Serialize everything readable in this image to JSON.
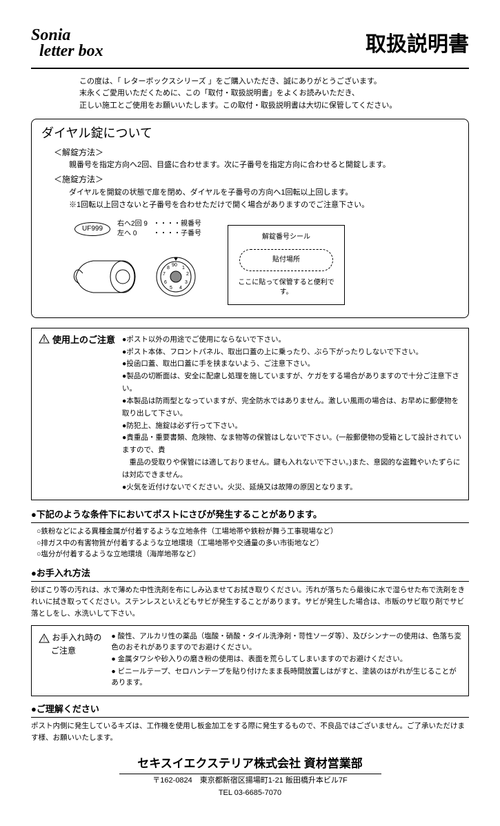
{
  "logo": {
    "line1": "Sonia",
    "line2": "letter box"
  },
  "title": "取扱説明書",
  "intro": {
    "l1": "この度は、「 レターボックスシリーズ 」をご購入いただき、誠にありがとうございます。",
    "l2": "末永くご愛用いただくために、この「取付・取扱説明書」をよくお読みいただき、",
    "l3": "正しい施工とご使用をお願いいたします。この取付・取扱説明書は大切に保管してください。"
  },
  "dial": {
    "heading": "ダイヤル錠について",
    "unlock_title": "＜解錠方法＞",
    "unlock_text": "親番号を指定方向へ2回、目盛に合わせます。次に子番号を指定方向に合わせると開錠します。",
    "lock_title": "＜施錠方法＞",
    "lock_text1": "ダイヤルを開錠の状態で扉を閉め、ダイヤルを子番号の方向へ1回転以上回します。",
    "lock_text2": "※1回転以上回さないと子番号を合わせただけで開く場合がありますのでご注意下さい。",
    "oval": "UF999",
    "info1a": "右へ2回 9",
    "info1b": "左へ   0",
    "info2a": "・・・・親番号",
    "info2b": "・・・・子番号",
    "seal_title": "解錠番号シール",
    "seal_place": "貼付場所",
    "seal_note": "ここに貼って保管すると便利です。"
  },
  "caution": {
    "label": "使用上のご注意",
    "items": [
      "●ポスト以外の用途でご使用にならないで下さい。",
      "●ポスト本体、フロントパネル、取出口蓋の上に乗ったり、ぶら下がったりしないで下さい。",
      "●投函口蓋、取出口蓋に手を挟まないよう、ご注意下さい。",
      "●製品の切断面は、安全に配慮し処理を施していますが、ケガをする場合がありますので十分ご注意下さい。",
      "●本製品は防雨型となっていますが、完全防水ではありません。激しい風雨の場合は、お早めに郵便物を取り出して下さい。",
      "●防犯上、施錠は必ず行って下さい。",
      "●貴重品・重要書類、危険物、なま物等の保管はしないで下さい。(一般郵便物の受箱として設計されていますので、貴",
      "　重品の受取りや保管には適しておりません。鍵も入れないで下さい。)また、意図的な盗難やいたずらには対応できません。",
      "●火気を近付けないでください。火災、延焼又は故障の原因となります。"
    ]
  },
  "rust": {
    "head": "●下記のような条件下においてポストにさびが発生することがあります。",
    "items": [
      "○鉄粉などによる異種金属が付着するような立地条件（工場地帯や鉄粉が舞う工事現場など）",
      "○排ガス中の有害物質が付着するような立地環境（工場地帯や交通量の多い市街地など）",
      "○塩分が付着するような立地環境（海岸地帯など）"
    ]
  },
  "care": {
    "head": "●お手入れ方法",
    "text": "砂ぼこり等の汚れは、水で薄めた中性洗剤を布にしみ込ませてお拭き取りください。汚れが落ちたら最後に水で湿らせた布で洗剤をきれいに拭き取ってください。ステンレスといえどもサビが発生することがあります。サビが発生した場合は、市販のサビ取り剤でサビ落としをし、水洗いして下さい。"
  },
  "care_caution": {
    "label1": "お手入れ時の",
    "label2": "ご注意",
    "items": [
      "● 酸性、アルカリ性の薬品（塩酸・硝酸・タイル洗浄剤・苛性ソーダ等）、及びシンナーの使用は、色落ち変色のおそれがありますのでお避けください。",
      "● 金属タワシや砂入りの磨き粉の使用は、表面を荒らしてしまいますのでお避けください。",
      "● ビニールテープ、セロハンテープを貼り付けたまま長時間放置しはがすと、塗装のはがれが生じることがあります。"
    ]
  },
  "understand": {
    "head": "●ご理解ください",
    "text": "ポスト内側に発生しているキズは、工作機を使用し板金加工をする際に発生するもので、不良品ではございません。ご了承いただけます様、お願いいたします。"
  },
  "footer": {
    "company": "セキスイエクステリア株式会社 資材営業部",
    "addr": "〒162-0824　東京都新宿区揚場町1-21 飯田橋升本ビル7F",
    "tel": "TEL 03-6685-7070"
  }
}
